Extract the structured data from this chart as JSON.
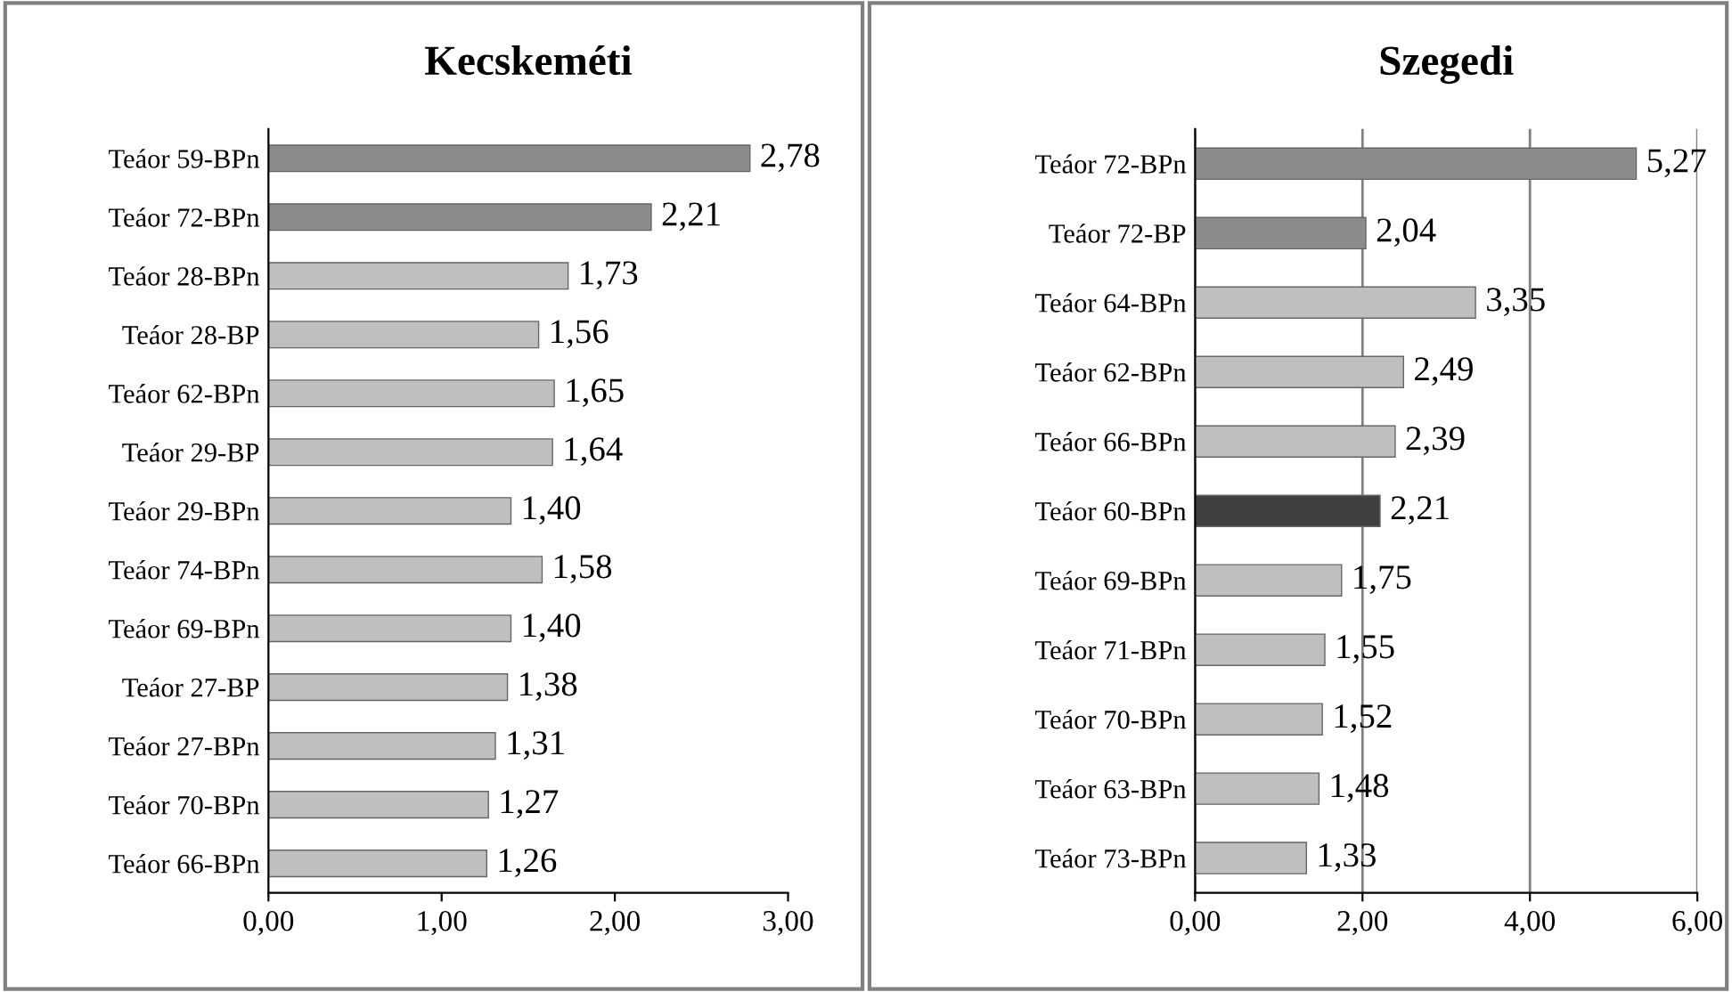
{
  "chart_data": [
    {
      "type": "bar",
      "orientation": "horizontal",
      "title": "Kecskeméti",
      "categories": [
        "Teáor 59-BPn",
        "Teáor 72-BPn",
        "Teáor 28-BPn",
        "Teáor 28-BP",
        "Teáor 62-BPn",
        "Teáor 29-BP",
        "Teáor 29-BPn",
        "Teáor 74-BPn",
        "Teáor 69-BPn",
        "Teáor 27-BP",
        "Teáor 27-BPn",
        "Teáor 70-BPn",
        "Teáor 66-BPn"
      ],
      "values": [
        2.78,
        2.21,
        1.73,
        1.56,
        1.65,
        1.64,
        1.4,
        1.58,
        1.4,
        1.38,
        1.31,
        1.27,
        1.26
      ],
      "colors": [
        "#8c8c8c",
        "#8c8c8c",
        "#bfbfbf",
        "#bfbfbf",
        "#bfbfbf",
        "#bfbfbf",
        "#bfbfbf",
        "#bfbfbf",
        "#bfbfbf",
        "#bfbfbf",
        "#bfbfbf",
        "#bfbfbf",
        "#bfbfbf"
      ],
      "value_labels": [
        "2,78",
        "2,21",
        "1,73",
        "1,56",
        "1,65",
        "1,64",
        "1,40",
        "1,58",
        "1,40",
        "1,38",
        "1,31",
        "1,27",
        "1,26"
      ],
      "xlim": [
        0,
        3
      ],
      "xticks": [
        {
          "value": 0,
          "label": "0,00"
        },
        {
          "value": 1,
          "label": "1,00"
        },
        {
          "value": 2,
          "label": "2,00"
        },
        {
          "value": 3,
          "label": "3,00"
        }
      ],
      "grid": false
    },
    {
      "type": "bar",
      "orientation": "horizontal",
      "title": "Szegedi",
      "categories": [
        "Teáor 72-BPn",
        "Teáor 72-BP",
        "Teáor 64-BPn",
        "Teáor 62-BPn",
        "Teáor 66-BPn",
        "Teáor 60-BPn",
        "Teáor 69-BPn",
        "Teáor 71-BPn",
        "Teáor 70-BPn",
        "Teáor 63-BPn",
        "Teáor 73-BPn"
      ],
      "values": [
        5.27,
        2.04,
        3.35,
        2.49,
        2.39,
        2.21,
        1.75,
        1.55,
        1.52,
        1.48,
        1.33
      ],
      "colors": [
        "#8c8c8c",
        "#8c8c8c",
        "#bfbfbf",
        "#bfbfbf",
        "#bfbfbf",
        "#404040",
        "#bfbfbf",
        "#bfbfbf",
        "#bfbfbf",
        "#bfbfbf",
        "#bfbfbf"
      ],
      "value_labels": [
        "5,27",
        "2,04",
        "3,35",
        "2,49",
        "2,39",
        "2,21",
        "1,75",
        "1,55",
        "1,52",
        "1,48",
        "1,33"
      ],
      "xlim": [
        0,
        6
      ],
      "xticks": [
        {
          "value": 0,
          "label": "0,00"
        },
        {
          "value": 2,
          "label": "2,00"
        },
        {
          "value": 4,
          "label": "4,00"
        },
        {
          "value": 6,
          "label": "6,00"
        }
      ],
      "grid": "x"
    }
  ]
}
